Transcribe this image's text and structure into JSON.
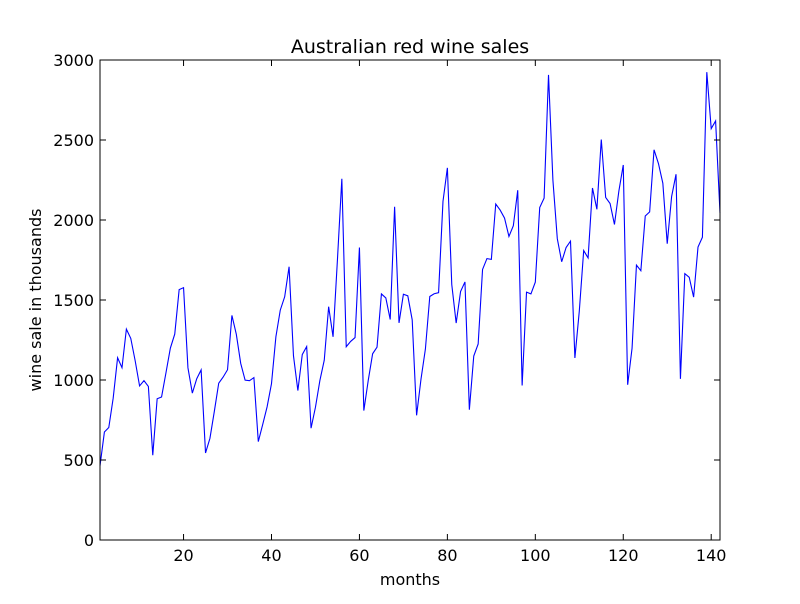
{
  "chart_data": {
    "type": "line",
    "title": "Australian red wine sales",
    "xlabel": "months",
    "ylabel": "wine sale in thousands",
    "xlim": [
      1,
      142
    ],
    "ylim": [
      0,
      3000
    ],
    "xticks": [
      20,
      40,
      60,
      80,
      100,
      120,
      140
    ],
    "yticks": [
      0,
      500,
      1000,
      1500,
      2000,
      2500,
      3000
    ],
    "grid": false,
    "series": [
      {
        "color": "#0000ff",
        "x": [
          1,
          2,
          3,
          4,
          5,
          6,
          7,
          8,
          9,
          10,
          11,
          12,
          13,
          14,
          15,
          16,
          17,
          18,
          19,
          20,
          21,
          22,
          23,
          24,
          25,
          26,
          27,
          28,
          29,
          30,
          31,
          32,
          33,
          34,
          35,
          36,
          37,
          38,
          39,
          40,
          41,
          42,
          43,
          44,
          45,
          46,
          47,
          48,
          49,
          50,
          51,
          52,
          53,
          54,
          55,
          56,
          57,
          58,
          59,
          60,
          61,
          62,
          63,
          64,
          65,
          66,
          67,
          68,
          69,
          70,
          71,
          72,
          73,
          74,
          75,
          76,
          77,
          78,
          79,
          80,
          81,
          82,
          83,
          84,
          85,
          86,
          87,
          88,
          89,
          90,
          91,
          92,
          93,
          94,
          95,
          96,
          97,
          98,
          99,
          100,
          101,
          102,
          103,
          104,
          105,
          106,
          107,
          108,
          109,
          110,
          111,
          112,
          113,
          114,
          115,
          116,
          117,
          118,
          119,
          120,
          121,
          122,
          123,
          124,
          125,
          126,
          127,
          128,
          129,
          130,
          131,
          132,
          133,
          134,
          135,
          136,
          137,
          138,
          139,
          140,
          141,
          142
        ],
        "y": [
          464,
          675,
          703,
          887,
          1139,
          1077,
          1318,
          1260,
          1120,
          963,
          996,
          960,
          530,
          883,
          894,
          1045,
          1199,
          1287,
          1565,
          1577,
          1076,
          918,
          1008,
          1063,
          544,
          635,
          804,
          980,
          1018,
          1064,
          1404,
          1286,
          1104,
          999,
          996,
          1015,
          615,
          722,
          832,
          977,
          1270,
          1437,
          1520,
          1708,
          1151,
          934,
          1159,
          1209,
          699,
          830,
          996,
          1124,
          1458,
          1270,
          1753,
          2258,
          1208,
          1241,
          1265,
          1828,
          809,
          997,
          1164,
          1205,
          1538,
          1513,
          1378,
          2083,
          1357,
          1536,
          1526,
          1376,
          779,
          1005,
          1193,
          1522,
          1539,
          1546,
          2116,
          2326,
          1596,
          1356,
          1553,
          1613,
          814,
          1150,
          1225,
          1691,
          1759,
          1754,
          2100,
          2062,
          2012,
          1897,
          1964,
          2186,
          966,
          1549,
          1538,
          1612,
          2078,
          2137,
          2907,
          2249,
          1883,
          1739,
          1828,
          1868,
          1138,
          1430,
          1809,
          1763,
          2200,
          2067,
          2503,
          2141,
          2103,
          1972,
          2181,
          2344,
          970,
          1199,
          1718,
          1683,
          2025,
          2051,
          2439,
          2353,
          2230,
          1852,
          2147,
          2286,
          1007,
          1665,
          1642,
          1518,
          1831,
          1892,
          2924,
          2571,
          2619,
          2044
        ]
      }
    ]
  }
}
